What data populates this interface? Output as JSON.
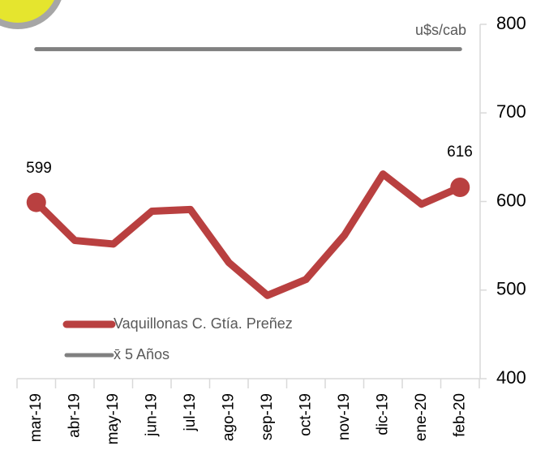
{
  "chart_data": {
    "type": "line",
    "y_label": "u$s/cab",
    "categories": [
      "mar-19",
      "abr-19",
      "may-19",
      "jun-19",
      "jul-19",
      "ago-19",
      "sep-19",
      "oct-19",
      "nov-19",
      "dic-19",
      "ene-20",
      "feb-20"
    ],
    "series": [
      {
        "name": "Vaquillonas C. Gtía. Preñez",
        "color": "#b94040",
        "values": [
          599,
          556,
          552,
          589,
          591,
          531,
          494,
          512,
          562,
          631,
          597,
          616
        ]
      },
      {
        "name": "x̄ 5 Años",
        "color": "#808080",
        "values": [
          772,
          772,
          772,
          772,
          772,
          772,
          772,
          772,
          772,
          772,
          772,
          772
        ]
      }
    ],
    "ylim": [
      400,
      800
    ],
    "yticks": [
      400,
      500,
      600,
      700,
      800
    ],
    "y_axis_side": "right",
    "legend": "lower left"
  }
}
